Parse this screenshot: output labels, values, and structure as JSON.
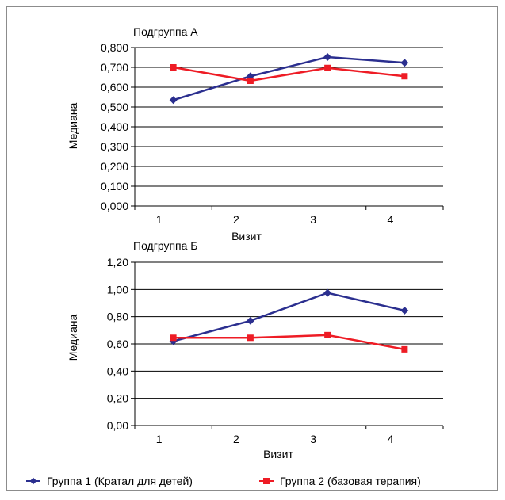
{
  "legend": {
    "group1": "Группа 1 (Кратал для детей)",
    "group2": "Группа 2 (базовая терапия)"
  },
  "colors": {
    "group1": "#2b2f8f",
    "group2": "#ee1c25",
    "grid": "#000000"
  },
  "chart_data": [
    {
      "type": "line",
      "title": "Подгруппа А",
      "xlabel": "Визит",
      "ylabel": "Медиана",
      "categories": [
        "1",
        "2",
        "3",
        "4"
      ],
      "ylim": [
        0,
        0.8
      ],
      "yticks": [
        "0,000",
        "0,100",
        "0,200",
        "0,300",
        "0,400",
        "0,500",
        "0,600",
        "0,700",
        "0,800"
      ],
      "grid": true,
      "legend_position": "bottom",
      "series": [
        {
          "name": "Группа 1 (Кратал для детей)",
          "values": [
            0.535,
            0.655,
            0.752,
            0.723
          ]
        },
        {
          "name": "Группа 2 (базовая терапия)",
          "values": [
            0.7,
            0.632,
            0.697,
            0.655
          ]
        }
      ]
    },
    {
      "type": "line",
      "title": "Подгруппа Б",
      "xlabel": "Визит",
      "ylabel": "Медиана",
      "categories": [
        "1",
        "2",
        "3",
        "4"
      ],
      "ylim": [
        0,
        1.2
      ],
      "yticks": [
        "0,00",
        "0,20",
        "0,40",
        "0,60",
        "0,80",
        "1,00",
        "1,20"
      ],
      "grid": true,
      "legend_position": "bottom",
      "series": [
        {
          "name": "Группа 1 (Кратал для детей)",
          "values": [
            0.62,
            0.77,
            0.975,
            0.845
          ]
        },
        {
          "name": "Группа 2 (базовая терапия)",
          "values": [
            0.645,
            0.645,
            0.665,
            0.56
          ]
        }
      ]
    }
  ]
}
